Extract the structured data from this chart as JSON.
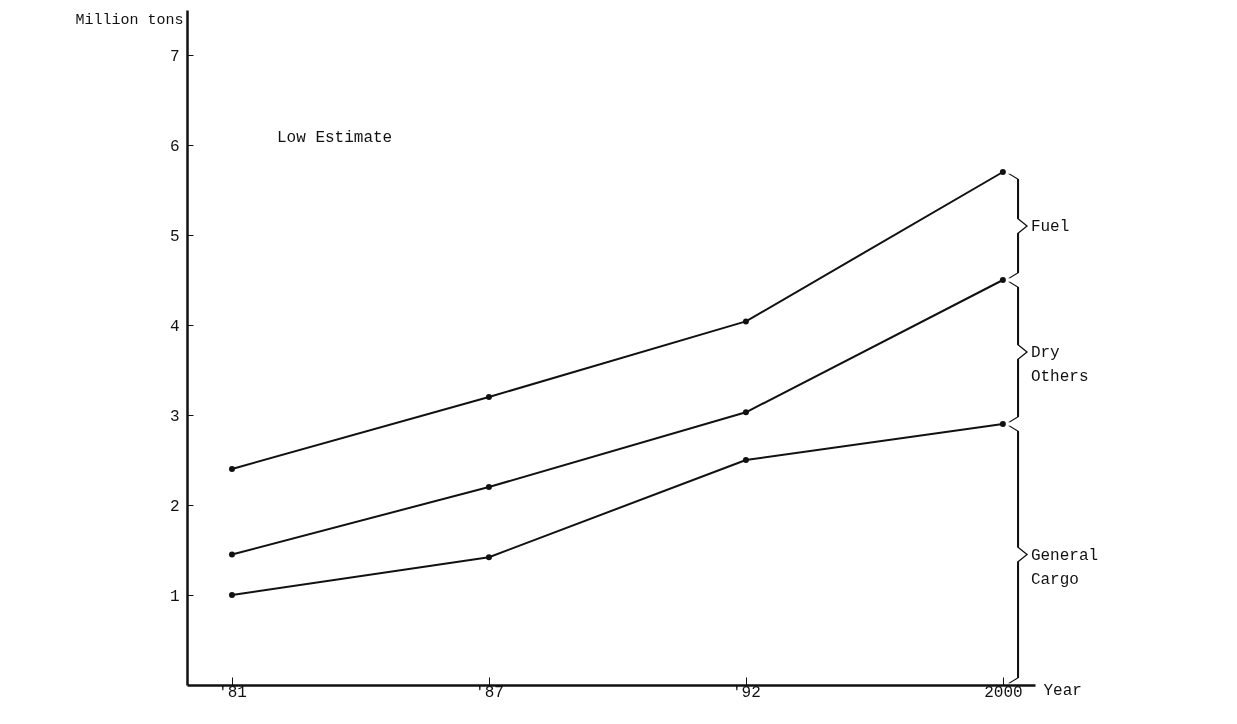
{
  "chart_data": {
    "type": "line",
    "ylabel": "Million tons",
    "xlabel": "Year",
    "categories": [
      "'81",
      "'87",
      "'92",
      "2000"
    ],
    "ylim": [
      0,
      7.5
    ],
    "yticks": [
      1,
      2,
      3,
      4,
      5,
      6,
      7
    ],
    "series": [
      {
        "color": "#111111",
        "values": [
          1.0,
          1.42,
          2.5,
          2.9
        ]
      },
      {
        "color": "#111111",
        "values": [
          1.45,
          2.2,
          3.03,
          4.5
        ]
      },
      {
        "color": "#111111",
        "values": [
          2.4,
          3.2,
          4.04,
          5.7
        ]
      }
    ],
    "annotations": [
      "Low Estimate",
      "General Cargo",
      "Dry Others",
      "Fuel"
    ],
    "marker": "circle",
    "line_style": "solid"
  }
}
